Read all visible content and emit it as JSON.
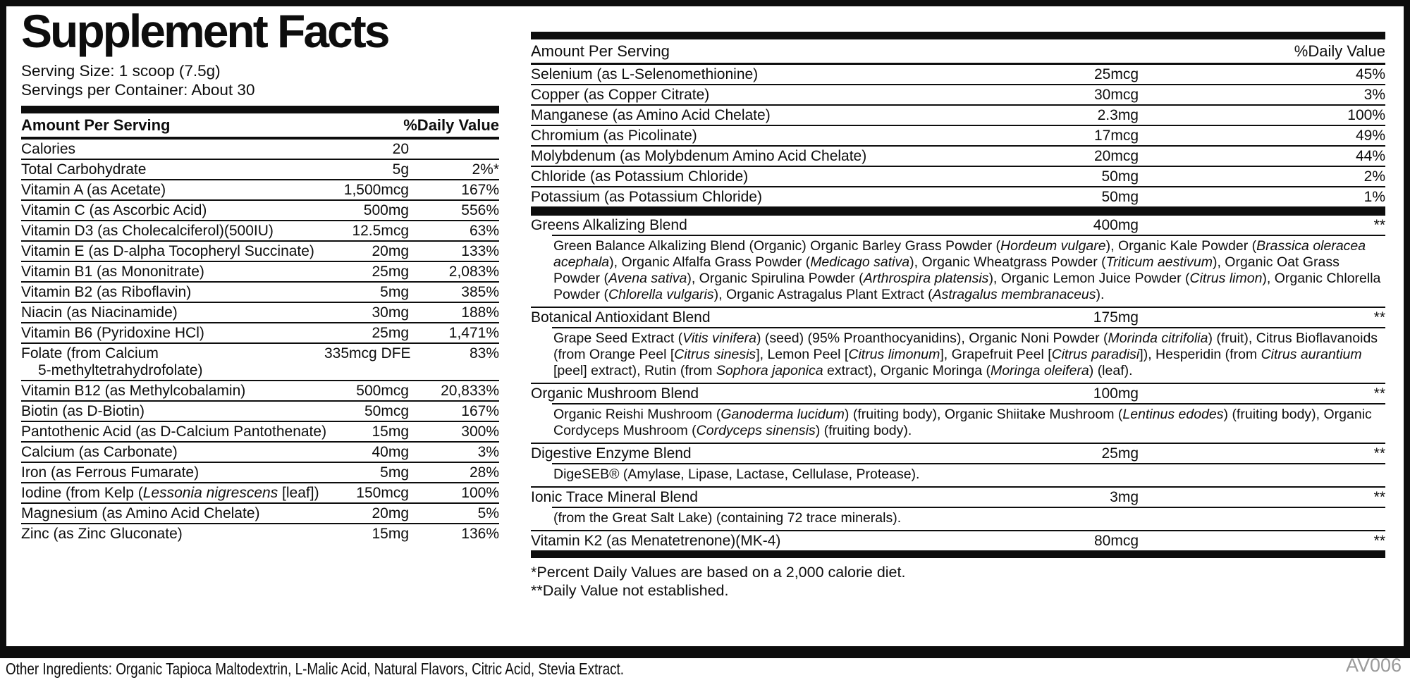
{
  "colors": {
    "ink": "#0d0d0d",
    "code_muted": "#9a9a9a",
    "background": "#ffffff"
  },
  "title": "Supplement Facts",
  "serving": {
    "size": "Serving Size: 1 scoop (7.5g)",
    "per_container": "Servings per Container: About 30"
  },
  "headers": {
    "amount": "Amount Per Serving",
    "dv": "%Daily Value"
  },
  "left_table": {
    "rows": [
      {
        "name": "Calories",
        "amount": "20",
        "dv": ""
      },
      {
        "name": "Total Carbohydrate",
        "amount": "5g",
        "dv": "2%*"
      },
      {
        "name": "Vitamin A (as Acetate)",
        "amount": "1,500mcg",
        "dv": "167%"
      },
      {
        "name": "Vitamin C (as Ascorbic Acid)",
        "amount": "500mg",
        "dv": "556%"
      },
      {
        "name": "Vitamin D3 (as Cholecalciferol)(500IU)",
        "amount": "12.5mcg",
        "dv": "63%"
      },
      {
        "name": "Vitamin E (as D-alpha Tocopheryl Succinate)",
        "amount": "20mg",
        "dv": "133%"
      },
      {
        "name": "Vitamin B1 (as Mononitrate)",
        "amount": "25mg",
        "dv": "2,083%"
      },
      {
        "name": "Vitamin B2 (as Riboflavin)",
        "amount": "5mg",
        "dv": "385%"
      },
      {
        "name": "Niacin (as Niacinamide)",
        "amount": "30mg",
        "dv": "188%"
      },
      {
        "name": "Vitamin B6 (Pyridoxine HCl)",
        "amount": "25mg",
        "dv": "1,471%"
      },
      {
        "name": "Folate (from Calcium",
        "name2": "5-methyltetrahydrofolate)",
        "amount": "335mcg DFE",
        "dv": "83%"
      },
      {
        "name": "Vitamin B12 (as Methylcobalamin)",
        "amount": "500mcg",
        "dv": "20,833%"
      },
      {
        "name": "Biotin (as D-Biotin)",
        "amount": "50mcg",
        "dv": "167%"
      },
      {
        "name": "Pantothenic Acid (as D-Calcium Pantothenate)",
        "amount": "15mg",
        "dv": "300%"
      },
      {
        "name": "Calcium (as Carbonate)",
        "amount": "40mg",
        "dv": "3%"
      },
      {
        "name": "Iron (as Ferrous Fumarate)",
        "amount": "5mg",
        "dv": "28%"
      },
      {
        "name": "Iodine (from Kelp (*Lessonia nigrescens* [leaf])",
        "amount": "150mcg",
        "dv": "100%"
      },
      {
        "name": "Magnesium (as Amino Acid Chelate)",
        "amount": "20mg",
        "dv": "5%"
      },
      {
        "name": "Zinc (as Zinc Gluconate)",
        "amount": "15mg",
        "dv": "136%"
      }
    ]
  },
  "right_table": {
    "rows": [
      {
        "name": "Selenium (as L-Selenomethionine)",
        "amount": "25mcg",
        "dv": "45%"
      },
      {
        "name": "Copper (as Copper Citrate)",
        "amount": "30mcg",
        "dv": "3%"
      },
      {
        "name": "Manganese (as Amino Acid Chelate)",
        "amount": "2.3mg",
        "dv": "100%"
      },
      {
        "name": "Chromium (as Picolinate)",
        "amount": "17mcg",
        "dv": "49%"
      },
      {
        "name": "Molybdenum (as Molybdenum Amino Acid Chelate)",
        "amount": "20mcg",
        "dv": "44%"
      },
      {
        "name": "Chloride (as Potassium Chloride)",
        "amount": "50mg",
        "dv": "2%"
      },
      {
        "name": "Potassium (as Potassium Chloride)",
        "amount": "50mg",
        "dv": "1%"
      }
    ]
  },
  "blends": {
    "items": [
      {
        "name": "Greens Alkalizing Blend",
        "amount": "400mg",
        "dv": "**",
        "desc": "Green Balance Alkalizing Blend (Organic) Organic Barley Grass Powder (*Hordeum vulgare*), Organic Kale Powder (*Brassica oleracea acephala*), Organic Alfalfa Grass Powder (*Medicago sativa*), Organic Wheatgrass Powder (*Triticum aestivum*), Organic Oat Grass Powder (*Avena sativa*), Organic Spirulina Powder (*Arthrospira platensis*), Organic Lemon Juice Powder (*Citrus limon*), Organic Chlorella Powder (*Chlorella vulgaris*), Organic Astragalus Plant Extract (*Astragalus membranaceus*)."
      },
      {
        "name": "Botanical Antioxidant Blend",
        "amount": "175mg",
        "dv": "**",
        "desc": "Grape Seed Extract (*Vitis vinifera*) (seed) (95% Proanthocyanidins), Organic Noni Powder (*Morinda citrifolia*) (fruit), Citrus Bioflavanoids (from Orange Peel [*Citrus sinesis*], Lemon Peel [*Citrus limonum*], Grapefruit Peel [*Citrus paradisi*]), Hesperidin (from *Citrus aurantium* [peel] extract), Rutin (from *Sophora japonica* extract), Organic Moringa (*Moringa oleifera*) (leaf)."
      },
      {
        "name": "Organic Mushroom Blend",
        "amount": "100mg",
        "dv": "**",
        "desc": "Organic Reishi Mushroom (*Ganoderma lucidum*) (fruiting body), Organic Shiitake Mushroom (*Lentinus edodes*) (fruiting body), Organic Cordyceps Mushroom (*Cordyceps sinensis*) (fruiting body)."
      },
      {
        "name": "Digestive Enzyme Blend",
        "amount": "25mg",
        "dv": "**",
        "desc": "DigeSEB® (Amylase, Lipase, Lactase, Cellulase, Protease)."
      },
      {
        "name": "Ionic Trace Mineral Blend",
        "amount": "3mg",
        "dv": "**",
        "desc": "(from the Great Salt Lake) (containing 72 trace minerals)."
      },
      {
        "name": "Vitamin K2 (as Menatetrenone)(MK-4)",
        "amount": "80mcg",
        "dv": "**"
      }
    ]
  },
  "footnotes": {
    "line1": "*Percent Daily Values are based on a 2,000 calorie diet.",
    "line2": "**Daily Value not established."
  },
  "other_ingredients": "Other Ingredients: Organic Tapioca Maltodextrin, L-Malic Acid, Natural Flavors, Citric Acid, Stevia Extract.",
  "product_code": "AV006"
}
